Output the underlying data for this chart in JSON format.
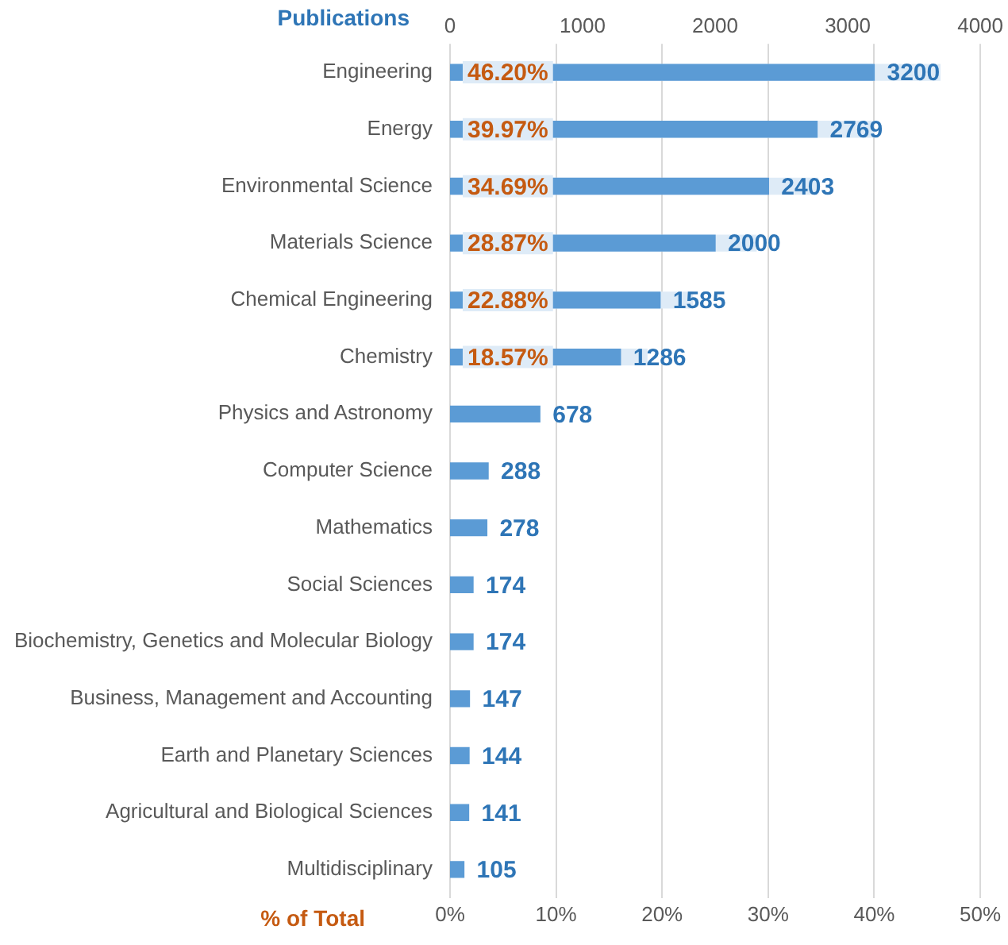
{
  "chart_data": {
    "type": "bar",
    "orientation": "horizontal",
    "xlabel": "% of Total",
    "x2label": "Publications",
    "categories": [
      "Engineering",
      "Energy",
      "Environmental Science",
      "Materials Science",
      "Chemical Engineering",
      "Chemistry",
      "Physics and Astronomy",
      "Computer Science",
      "Mathematics",
      "Social Sciences",
      "Biochemistry, Genetics and Molecular Biology",
      "Business, Management and Accounting",
      "Earth and Planetary Sciences",
      "Agricultural and Biological Sciences",
      "Multidisciplinary"
    ],
    "series": [
      {
        "color": "#deebf7",
        "values": [
          46.2,
          39.97,
          34.69,
          28.87,
          22.88,
          18.57,
          null,
          null,
          null,
          null,
          null,
          null,
          null,
          null,
          null
        ],
        "value_labels": [
          "46.20%",
          "39.97%",
          "34.69%",
          "28.87%",
          "22.88%",
          "18.57%",
          null,
          null,
          null,
          null,
          null,
          null,
          null,
          null,
          null
        ]
      },
      {
        "color": "#5b9bd5",
        "axis": "x2",
        "values": [
          3200,
          2769,
          2403,
          2000,
          1585,
          1286,
          678,
          288,
          278,
          174,
          174,
          147,
          144,
          141,
          105
        ],
        "value_labels": [
          "3200",
          "2769",
          "2403",
          "2000",
          "1585",
          "1286",
          "678",
          "288",
          "278",
          "174",
          "174",
          "147",
          "144",
          "141",
          "105"
        ]
      }
    ],
    "xlim": [
      0,
      50
    ],
    "xticks": [
      {
        "value": 0,
        "label": "0%"
      },
      {
        "value": 10,
        "label": "10%"
      },
      {
        "value": 20,
        "label": "20%"
      },
      {
        "value": 30,
        "label": "30%"
      },
      {
        "value": 40,
        "label": "40%"
      },
      {
        "value": 50,
        "label": "50%"
      }
    ],
    "x2lim": [
      0,
      4000
    ],
    "x2ticks": [
      0,
      1000,
      2000,
      3000,
      4000
    ],
    "grid": "x",
    "legend": false
  }
}
